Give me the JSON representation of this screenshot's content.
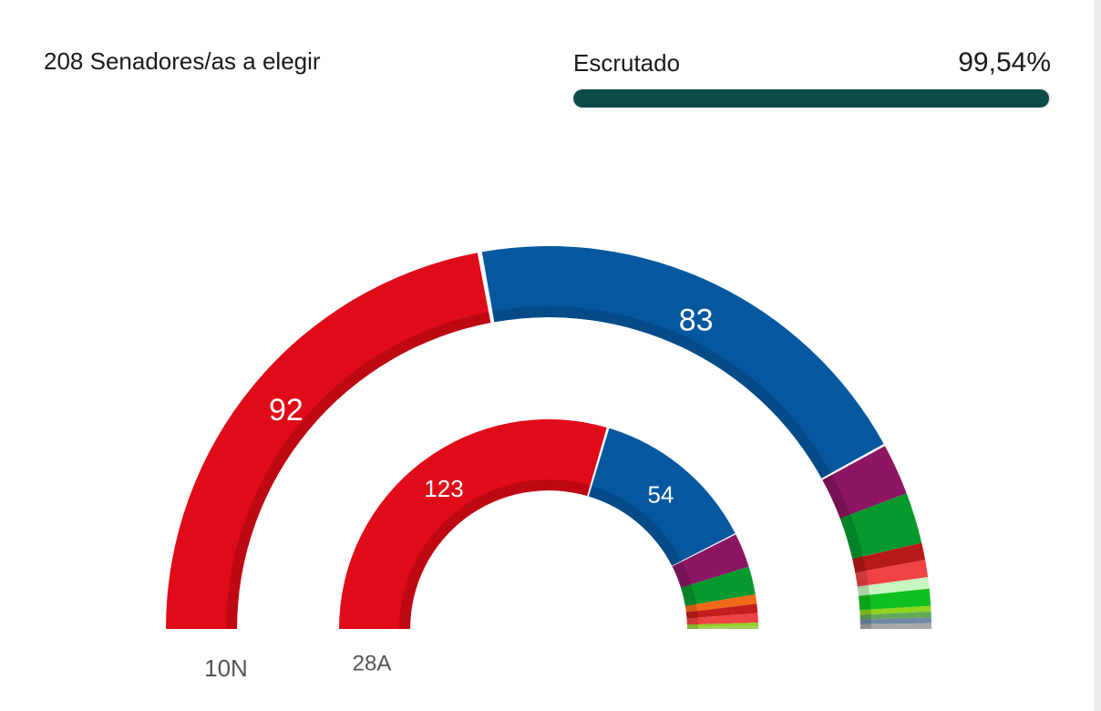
{
  "header": {
    "seats_title": "208 Senadores/as a elegir",
    "progress_label": "Escrutado",
    "progress_value": "99,54%",
    "progress_percent": 99.54,
    "progress_color": "#0e4a48"
  },
  "chart_data": {
    "type": "semicircle",
    "rings": [
      {
        "label": "10N",
        "total": 208,
        "segments": [
          {
            "value": 92,
            "color": "#e00b18",
            "label": "92"
          },
          {
            "value": 83,
            "color": "#0558a0",
            "label": "83"
          },
          {
            "value": 9,
            "color": "#8c1663",
            "label": ""
          },
          {
            "value": 9,
            "color": "#05992e",
            "label": ""
          },
          {
            "value": 3,
            "color": "#b71919",
            "label": ""
          },
          {
            "value": 3,
            "color": "#ef4343",
            "label": ""
          },
          {
            "value": 2,
            "color": "#c8f5c0",
            "label": ""
          },
          {
            "value": 3,
            "color": "#0fbf1f",
            "label": ""
          },
          {
            "value": 1,
            "color": "#8fd41e",
            "label": ""
          },
          {
            "value": 1,
            "color": "#62a85a",
            "label": ""
          },
          {
            "value": 1,
            "color": "#6f8aa6",
            "label": ""
          },
          {
            "value": 1,
            "color": "#a8a8a8",
            "label": ""
          }
        ]
      },
      {
        "label": "28A",
        "total": 208,
        "segments": [
          {
            "value": 123,
            "color": "#e00b18",
            "label": "123"
          },
          {
            "value": 54,
            "color": "#0558a0",
            "label": "54"
          },
          {
            "value": 11,
            "color": "#8c1663",
            "label": ""
          },
          {
            "value": 9,
            "color": "#05992e",
            "label": ""
          },
          {
            "value": 3,
            "color": "#f26a17",
            "label": ""
          },
          {
            "value": 3,
            "color": "#c41d1d",
            "label": ""
          },
          {
            "value": 3,
            "color": "#ef4343",
            "label": ""
          },
          {
            "value": 1,
            "color": "#8fd41e",
            "label": ""
          },
          {
            "value": 1,
            "color": "#a6cc5a",
            "label": ""
          }
        ]
      }
    ]
  }
}
